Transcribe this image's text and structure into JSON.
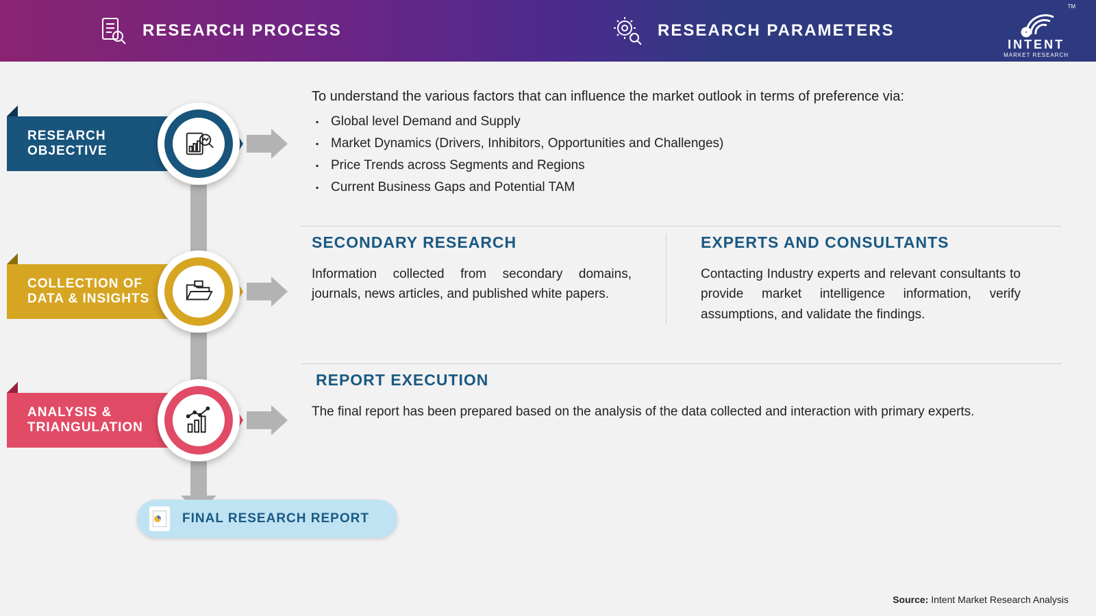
{
  "header": {
    "left_title": "RESEARCH PROCESS",
    "right_title": "RESEARCH PARAMETERS",
    "left_bg_from": "#8a2471",
    "left_bg_to": "#4a2b8e",
    "right_bg": "#2e3a80"
  },
  "logo": {
    "name": "INTENT",
    "sub": "MARKET RESEARCH",
    "tm": "TM"
  },
  "colors": {
    "step1": "#18547b",
    "step1_fold": "#0c3550",
    "step2": "#d6a522",
    "step2_fold": "#8f6e0e",
    "step3": "#e14b66",
    "step3_fold": "#9a1e3d",
    "arrow": "#b3b3b3",
    "title_text": "#1a5983",
    "final_pill_bg": "#bfe3f2",
    "background": "#f2f2f2"
  },
  "steps": [
    {
      "label": "RESEARCH\nOBJECTIVE",
      "intro": "To understand the various factors that can influence the market outlook in terms of preference via:",
      "bullets": [
        "Global level Demand and Supply",
        "Market Dynamics (Drivers, Inhibitors, Opportunities and Challenges)",
        "Price Trends across Segments and Regions",
        "Current Business Gaps and Potential TAM"
      ]
    },
    {
      "label": "COLLECTION OF\nDATA & INSIGHTS",
      "cols": [
        {
          "title": "SECONDARY RESEARCH",
          "body": "Information collected from secondary domains, journals, news articles, and published white papers."
        },
        {
          "title": "EXPERTS AND CONSULTANTS",
          "body": "Contacting Industry experts and relevant consultants to provide market intelligence information, verify assumptions, and validate the findings."
        }
      ]
    },
    {
      "label": "ANALYSIS &\nTRIANGULATION",
      "single": {
        "title": "REPORT EXECUTION",
        "body": "The final report has been prepared based on the analysis of the data collected and interaction with primary experts."
      }
    }
  ],
  "final": {
    "label": "FINAL RESEARCH REPORT"
  },
  "source": {
    "label": "Source:",
    "text": "Intent Market Research Analysis"
  }
}
